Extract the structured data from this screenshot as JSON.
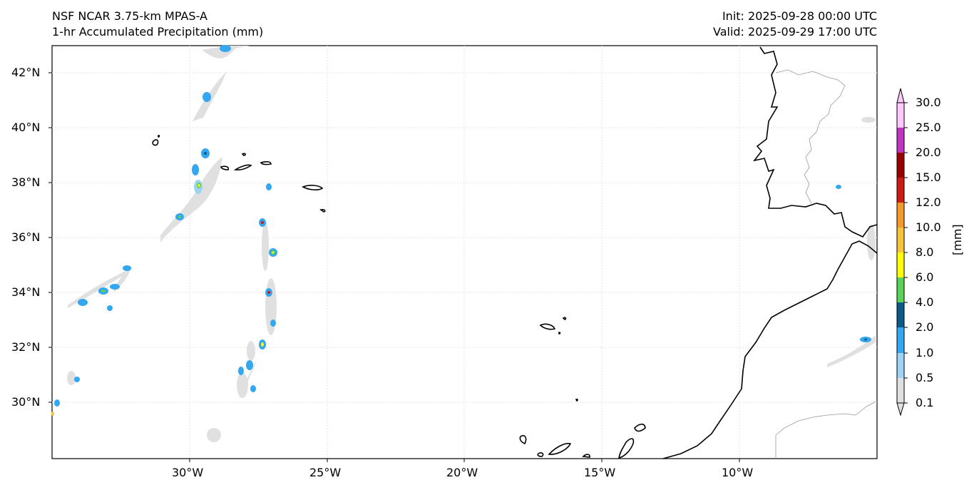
{
  "header": {
    "model": "NSF NCAR 3.75-km MPAS-A",
    "field": "1-hr Accumulated Precipitation (mm)",
    "init": "Init: 2025-09-28 00:00 UTC",
    "valid": "Valid: 2025-09-29 17:00 UTC"
  },
  "axes": {
    "lat_labels": [
      "42°N",
      "40°N",
      "38°N",
      "36°N",
      "34°N",
      "32°N",
      "30°N"
    ],
    "lon_labels": [
      "30°W",
      "25°W",
      "20°W",
      "15°W",
      "10°W"
    ]
  },
  "colorbar": {
    "unit": "[mm]",
    "levels": [
      "0.1",
      "0.5",
      "1.0",
      "2.0",
      "4.0",
      "6.0",
      "8.0",
      "10.0",
      "12.0",
      "15.0",
      "20.0",
      "25.0",
      "30.0"
    ],
    "colors": [
      "#e0e0e0",
      "#9fd3f5",
      "#33a7f0",
      "#0a5a8a",
      "#5ad25a",
      "#ffff00",
      "#f8c53a",
      "#f39a2e",
      "#cc1a14",
      "#990000",
      "#c035c0",
      "#ffc8ff"
    ]
  }
}
